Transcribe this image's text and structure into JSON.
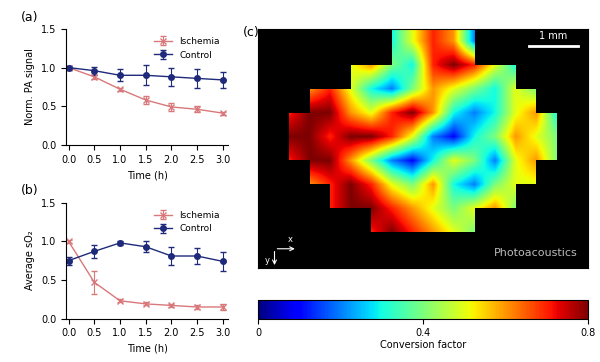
{
  "chart_data": [
    {
      "type": "line",
      "title": "(a)",
      "x_label": "Time (h)",
      "y_label": "Norm. PA signal",
      "x": [
        0.0,
        0.5,
        1.0,
        1.5,
        2.0,
        2.5,
        3.0
      ],
      "series": [
        {
          "name": "Ischemia",
          "color": "#d9787a",
          "marker": "x",
          "line_style": "solid",
          "values": [
            1.0,
            0.88,
            0.72,
            0.58,
            0.49,
            0.46,
            0.41
          ],
          "errors": [
            0.02,
            0.03,
            0.02,
            0.05,
            0.05,
            0.04,
            0.02
          ]
        },
        {
          "name": "Control",
          "color": "#1f2a7a",
          "marker": "o",
          "line_style": "solid",
          "values": [
            1.0,
            0.96,
            0.9,
            0.9,
            0.88,
            0.86,
            0.84
          ],
          "errors": [
            0.02,
            0.05,
            0.08,
            0.13,
            0.12,
            0.12,
            0.1
          ]
        }
      ],
      "xlim": [
        -0.05,
        3.1
      ],
      "xticks": [
        {
          "value": 0,
          "label": "0.0"
        },
        {
          "value": 0.5,
          "label": "0.5"
        },
        {
          "value": 1,
          "label": "1.0"
        },
        {
          "value": 1.5,
          "label": "1.5"
        },
        {
          "value": 2,
          "label": "2.0"
        },
        {
          "value": 2.5,
          "label": "2.5"
        },
        {
          "value": 3,
          "label": "3.0"
        }
      ],
      "ylim": [
        0,
        1.5
      ],
      "yticks": [
        {
          "value": 0,
          "label": "0.0"
        },
        {
          "value": 0.5,
          "label": "0.5"
        },
        {
          "value": 1,
          "label": "1.0"
        },
        {
          "value": 1.5,
          "label": "1.5"
        }
      ],
      "legend": "upper right"
    },
    {
      "type": "line",
      "title": "(b)",
      "x_label": "Time (h)",
      "y_label": "Average sO₂",
      "x": [
        0.0,
        0.5,
        1.0,
        1.5,
        2.0,
        2.5,
        3.0
      ],
      "series": [
        {
          "name": "Ischemia",
          "color": "#d9787a",
          "marker": "x",
          "line_style": "solid",
          "values": [
            1.0,
            0.47,
            0.23,
            0.19,
            0.17,
            0.15,
            0.15
          ],
          "errors": [
            0.02,
            0.15,
            0.02,
            0.02,
            0.02,
            0.03,
            0.04
          ]
        },
        {
          "name": "Control",
          "color": "#1f2a7a",
          "marker": "o",
          "line_style": "solid",
          "values": [
            0.75,
            0.87,
            0.98,
            0.93,
            0.81,
            0.81,
            0.74
          ],
          "errors": [
            0.05,
            0.08,
            0.03,
            0.07,
            0.12,
            0.1,
            0.12
          ]
        }
      ],
      "xlim": [
        -0.05,
        3.1
      ],
      "xticks": [
        {
          "value": 0,
          "label": "0.0"
        },
        {
          "value": 0.5,
          "label": "0.5"
        },
        {
          "value": 1,
          "label": "1.0"
        },
        {
          "value": 1.5,
          "label": "1.5"
        },
        {
          "value": 2,
          "label": "2.0"
        },
        {
          "value": 2.5,
          "label": "2.5"
        },
        {
          "value": 3,
          "label": "3.0"
        }
      ],
      "ylim": [
        0,
        1.5
      ],
      "yticks": [
        {
          "value": 0,
          "label": "0.0"
        },
        {
          "value": 0.5,
          "label": "0.5"
        },
        {
          "value": 1,
          "label": "1.0"
        },
        {
          "value": 1.5,
          "label": "1.5"
        }
      ],
      "legend": "upper right"
    },
    {
      "type": "heatmap",
      "title": "(c)",
      "colorbar_label": "Conversion factor",
      "scale_bar": "1 mm",
      "axis_arrows": [
        "x",
        "y"
      ],
      "tick_labels": false,
      "colorbar_range": [
        0,
        0.8
      ],
      "colorbar_ticks": [
        0,
        0.4,
        0.8
      ],
      "cells": [
        [
          null,
          null,
          null,
          null,
          null,
          null,
          0.3,
          0.5,
          0.7,
          0.6,
          0.2,
          null,
          null,
          null,
          null,
          null
        ],
        [
          null,
          null,
          null,
          null,
          0.5,
          0.6,
          0.4,
          0.3,
          0.7,
          0.8,
          0.7,
          0.5,
          0.3,
          null,
          null,
          null
        ],
        [
          null,
          null,
          0.6,
          0.7,
          0.5,
          0.3,
          0.2,
          0.4,
          0.6,
          0.5,
          0.4,
          0.3,
          0.5,
          0.4,
          null,
          null
        ],
        [
          null,
          0.7,
          0.8,
          0.8,
          0.6,
          0.5,
          0.7,
          0.8,
          0.6,
          0.3,
          0.2,
          0.3,
          0.5,
          0.6,
          0.3,
          null
        ],
        [
          null,
          0.8,
          0.8,
          0.7,
          0.8,
          0.8,
          0.7,
          0.5,
          0.2,
          0.1,
          0.3,
          0.4,
          0.6,
          0.5,
          0.4,
          null
        ],
        [
          null,
          0.7,
          0.8,
          0.8,
          0.6,
          0.4,
          0.2,
          0.1,
          0.3,
          0.5,
          0.4,
          0.2,
          0.5,
          0.6,
          0.4,
          null
        ],
        [
          null,
          null,
          0.6,
          0.7,
          0.8,
          0.7,
          0.5,
          0.4,
          0.6,
          0.3,
          0.2,
          0.4,
          0.5,
          0.5,
          null,
          null
        ],
        [
          null,
          null,
          null,
          0.7,
          0.8,
          0.8,
          0.7,
          0.6,
          0.5,
          0.4,
          0.5,
          0.6,
          0.4,
          null,
          null,
          null
        ],
        [
          null,
          null,
          null,
          null,
          null,
          0.7,
          0.8,
          0.7,
          0.6,
          0.5,
          0.4,
          null,
          null,
          null,
          null,
          null
        ],
        [
          null,
          null,
          null,
          null,
          null,
          null,
          null,
          null,
          null,
          null,
          null,
          null,
          null,
          null,
          null,
          null
        ]
      ]
    }
  ],
  "watermark": "Photoacoustics"
}
